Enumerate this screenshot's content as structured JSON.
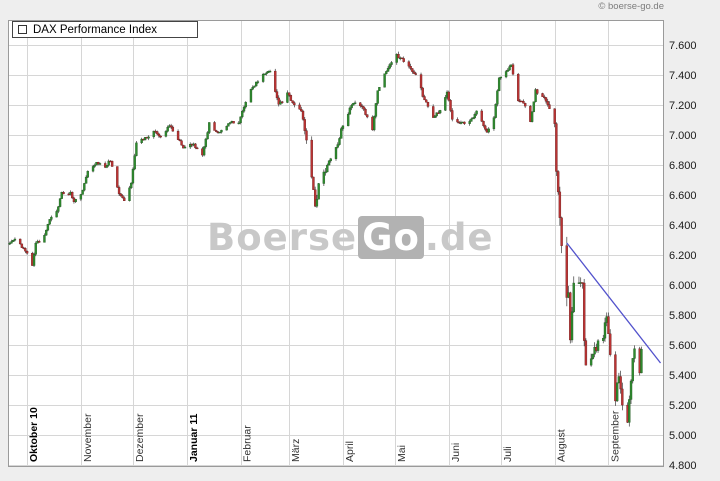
{
  "page": {
    "copyright": "© boerse-go.de"
  },
  "chart_data": {
    "type": "candlestick",
    "title": "DAX Performance Index",
    "watermark": {
      "part1": "Boerse",
      "part2": "Go",
      "part3": ".de"
    },
    "y_axis": {
      "min": 4800,
      "max": 7600,
      "step": 200,
      "tick_labels": [
        "7.600",
        "7.400",
        "7.200",
        "7.000",
        "6.800",
        "6.600",
        "6.400",
        "6.200",
        "6.000",
        "5.800",
        "5.600",
        "5.400",
        "5.200",
        "5.000",
        "4.800"
      ]
    },
    "x_axis": {
      "start_date": "2010-09-21",
      "end_date": "2011-09-20",
      "months": [
        {
          "label": "Oktober 10",
          "start": "2010-10-01",
          "bold": true
        },
        {
          "label": "November",
          "start": "2010-11-01",
          "bold": false
        },
        {
          "label": "Dezember",
          "start": "2010-12-01",
          "bold": false
        },
        {
          "label": "Januar 11",
          "start": "2011-01-01",
          "bold": true
        },
        {
          "label": "Februar",
          "start": "2011-02-01",
          "bold": false
        },
        {
          "label": "März",
          "start": "2011-03-01",
          "bold": false
        },
        {
          "label": "April",
          "start": "2011-04-01",
          "bold": false
        },
        {
          "label": "Mai",
          "start": "2011-05-01",
          "bold": false
        },
        {
          "label": "Juni",
          "start": "2011-06-01",
          "bold": false
        },
        {
          "label": "Juli",
          "start": "2011-07-01",
          "bold": false
        },
        {
          "label": "August",
          "start": "2011-08-01",
          "bold": false
        },
        {
          "label": "September",
          "start": "2011-09-01",
          "bold": false
        }
      ]
    },
    "series": {
      "name": "DAX Performance Index",
      "anchors": [
        [
          "2010-09-21",
          6276
        ],
        [
          "2010-09-24",
          6298
        ],
        [
          "2010-09-29",
          6247
        ],
        [
          "2010-10-01",
          6211
        ],
        [
          "2010-10-04",
          6135
        ],
        [
          "2010-10-06",
          6280
        ],
        [
          "2010-10-08",
          6291
        ],
        [
          "2010-10-12",
          6358
        ],
        [
          "2010-10-14",
          6434
        ],
        [
          "2010-10-18",
          6490
        ],
        [
          "2010-10-21",
          6611
        ],
        [
          "2010-10-26",
          6613
        ],
        [
          "2010-10-28",
          6560
        ],
        [
          "2010-11-01",
          6604
        ],
        [
          "2010-11-05",
          6754
        ],
        [
          "2010-11-10",
          6815
        ],
        [
          "2010-11-15",
          6790
        ],
        [
          "2010-11-18",
          6832
        ],
        [
          "2010-11-23",
          6615
        ],
        [
          "2010-11-26",
          6560
        ],
        [
          "2010-11-30",
          6688
        ],
        [
          "2010-12-03",
          6948
        ],
        [
          "2010-12-08",
          6975
        ],
        [
          "2010-12-14",
          7028
        ],
        [
          "2010-12-17",
          6982
        ],
        [
          "2010-12-22",
          7068
        ],
        [
          "2010-12-30",
          6914
        ],
        [
          "2011-01-05",
          6939
        ],
        [
          "2011-01-10",
          6860
        ],
        [
          "2011-01-14",
          7075
        ],
        [
          "2011-01-19",
          7012
        ],
        [
          "2011-01-26",
          7088
        ],
        [
          "2011-01-31",
          7077
        ],
        [
          "2011-02-03",
          7193
        ],
        [
          "2011-02-08",
          7323
        ],
        [
          "2011-02-14",
          7396
        ],
        [
          "2011-02-18",
          7427
        ],
        [
          "2011-02-23",
          7194
        ],
        [
          "2011-02-28",
          7272
        ],
        [
          "2011-03-03",
          7225
        ],
        [
          "2011-03-08",
          7164
        ],
        [
          "2011-03-11",
          6981
        ],
        [
          "2011-03-15",
          6648
        ],
        [
          "2011-03-16",
          6513
        ],
        [
          "2011-03-18",
          6664
        ],
        [
          "2011-03-23",
          6804
        ],
        [
          "2011-03-29",
          6935
        ],
        [
          "2011-03-31",
          7041
        ],
        [
          "2011-04-05",
          7175
        ],
        [
          "2011-04-08",
          7217
        ],
        [
          "2011-04-13",
          7168
        ],
        [
          "2011-04-18",
          7027
        ],
        [
          "2011-04-21",
          7295
        ],
        [
          "2011-04-28",
          7475
        ],
        [
          "2011-05-02",
          7528
        ],
        [
          "2011-05-06",
          7492
        ],
        [
          "2011-05-13",
          7404
        ],
        [
          "2011-05-17",
          7268
        ],
        [
          "2011-05-23",
          7121
        ],
        [
          "2011-05-27",
          7163
        ],
        [
          "2011-05-31",
          7293
        ],
        [
          "2011-06-03",
          7109
        ],
        [
          "2011-06-08",
          7085
        ],
        [
          "2011-06-10",
          7069
        ],
        [
          "2011-06-15",
          7115
        ],
        [
          "2011-06-17",
          7164
        ],
        [
          "2011-06-23",
          7018
        ],
        [
          "2011-06-27",
          7107
        ],
        [
          "2011-06-30",
          7376
        ],
        [
          "2011-07-05",
          7440
        ],
        [
          "2011-07-07",
          7475
        ],
        [
          "2011-07-11",
          7230
        ],
        [
          "2011-07-14",
          7214
        ],
        [
          "2011-07-18",
          7097
        ],
        [
          "2011-07-21",
          7295
        ],
        [
          "2011-07-26",
          7252
        ],
        [
          "2011-07-29",
          7159
        ],
        [
          "2011-08-01",
          7083
        ],
        [
          "2011-08-02",
          6797
        ],
        [
          "2011-08-04",
          6415
        ],
        [
          "2011-08-05",
          6236
        ],
        [
          "2011-08-08",
          5923
        ],
        [
          "2011-08-09",
          5917
        ],
        [
          "2011-08-10",
          5613
        ],
        [
          "2011-08-11",
          5797
        ],
        [
          "2011-08-12",
          5997
        ],
        [
          "2011-08-15",
          6022
        ],
        [
          "2011-08-17",
          5994
        ],
        [
          "2011-08-18",
          5602
        ],
        [
          "2011-08-19",
          5480
        ],
        [
          "2011-08-22",
          5522
        ],
        [
          "2011-08-25",
          5584
        ],
        [
          "2011-08-29",
          5670
        ],
        [
          "2011-08-31",
          5785
        ],
        [
          "2011-09-02",
          5538
        ],
        [
          "2011-09-05",
          5246
        ],
        [
          "2011-09-07",
          5406
        ],
        [
          "2011-09-09",
          5190
        ],
        [
          "2011-09-12",
          5072
        ],
        [
          "2011-09-14",
          5340
        ],
        [
          "2011-09-15",
          5508
        ],
        [
          "2011-09-16",
          5573
        ],
        [
          "2011-09-19",
          5416
        ],
        [
          "2011-09-20",
          5572
        ]
      ],
      "volatility_keyframes": [
        [
          "2010-09-21",
          38
        ],
        [
          "2011-02-21",
          50
        ],
        [
          "2011-03-10",
          95
        ],
        [
          "2011-03-23",
          45
        ],
        [
          "2011-05-02",
          48
        ],
        [
          "2011-06-06",
          40
        ],
        [
          "2011-07-27",
          70
        ],
        [
          "2011-08-02",
          170
        ],
        [
          "2011-08-12",
          135
        ],
        [
          "2011-08-23",
          105
        ],
        [
          "2011-09-05",
          125
        ],
        [
          "2011-09-14",
          95
        ]
      ]
    },
    "trendline": {
      "from": [
        "2011-08-08",
        6280
      ],
      "to": [
        "2011-10-01",
        5480
      ]
    },
    "colors": {
      "up": "#2e8b2e",
      "up_edge": "#1d501d",
      "down": "#bb3333",
      "down_edge": "#5e1616",
      "wick": "#3a3a3a",
      "grid": "#d6d6d6",
      "frame": "#9a9a9a",
      "trendline": "#5252cc",
      "plot_bg": "#ffffff",
      "page_bg": "#eeeeee",
      "y_label": "#1a1a1a",
      "x_label": "#333333",
      "x_label_bold": "#000000"
    }
  }
}
